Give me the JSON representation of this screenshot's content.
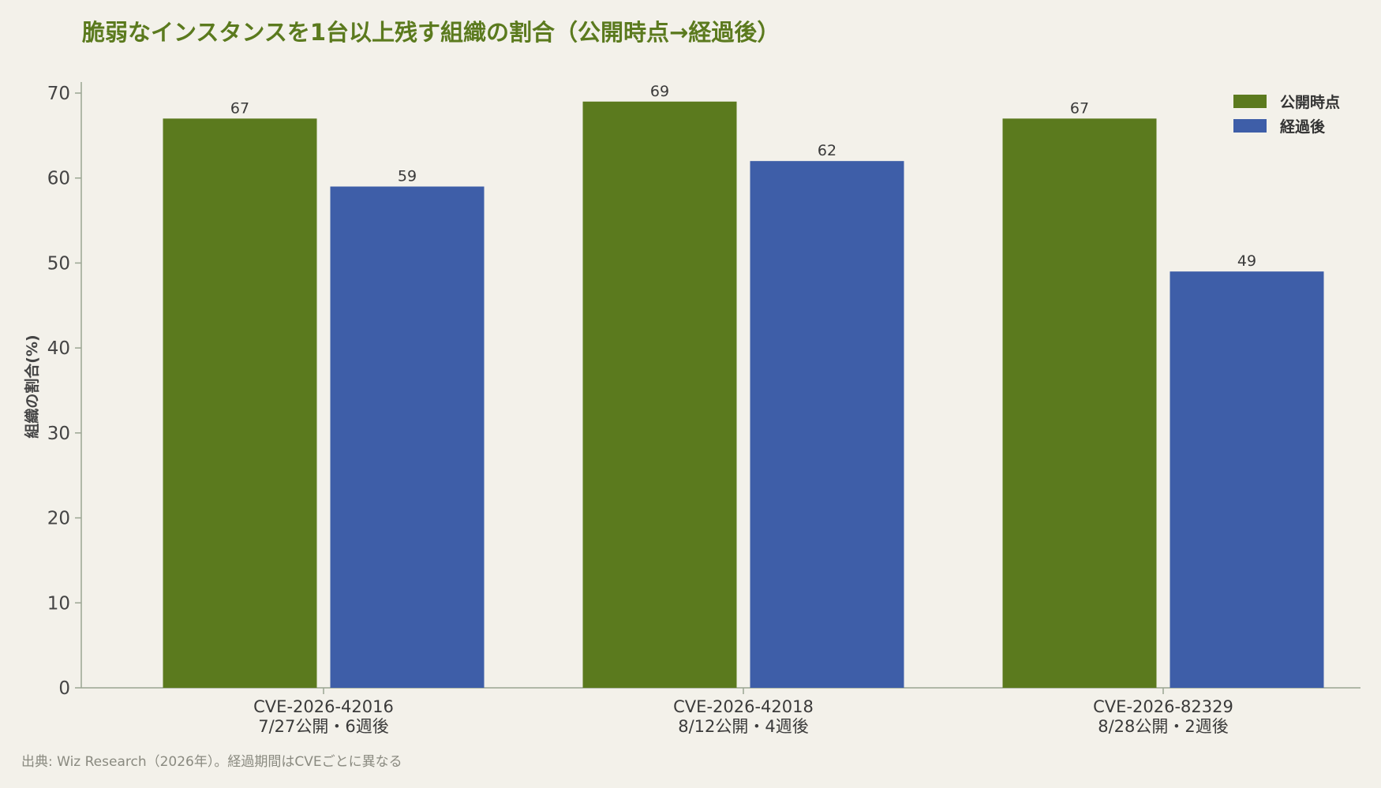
{
  "chart_data": {
    "type": "bar",
    "title": "脆弱なインスタンスを1台以上残す組織の割合（公開時点→経過後）",
    "ylabel": "組織の割合(%)",
    "xlabel": "",
    "ylim": [
      0,
      70
    ],
    "yticks": [
      0,
      10,
      20,
      30,
      40,
      50,
      60,
      70
    ],
    "categories": [
      {
        "line1": "CVE-2026-42016",
        "line2": "7/27公開・6週後"
      },
      {
        "line1": "CVE-2026-42018",
        "line2": "8/12公開・4週後"
      },
      {
        "line1": "CVE-2026-82329",
        "line2": "8/28公開・2週後"
      }
    ],
    "series": [
      {
        "name": "公開時点",
        "color": "#5b7a1e",
        "values": [
          67,
          69,
          67
        ]
      },
      {
        "name": "経過後",
        "color": "#3e5ea8",
        "values": [
          59,
          62,
          49
        ]
      }
    ],
    "legend_position": "top-right",
    "grid": false,
    "source": "出典: Wiz Research（2026年）。経過期間はCVEごとに異なる"
  }
}
